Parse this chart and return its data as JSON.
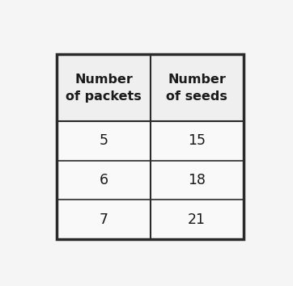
{
  "col_headers": [
    "Number\nof packets",
    "Number\nof seeds"
  ],
  "rows": [
    [
      "5",
      "15"
    ],
    [
      "6",
      "18"
    ],
    [
      "7",
      "21"
    ]
  ],
  "outer_bg": "#f5f5f5",
  "header_bg": "#efefef",
  "cell_bg": "#f9f9f9",
  "border_color": "#2a2a2a",
  "text_color": "#1a1a1a",
  "header_fontsize": 11.5,
  "cell_fontsize": 12.5
}
